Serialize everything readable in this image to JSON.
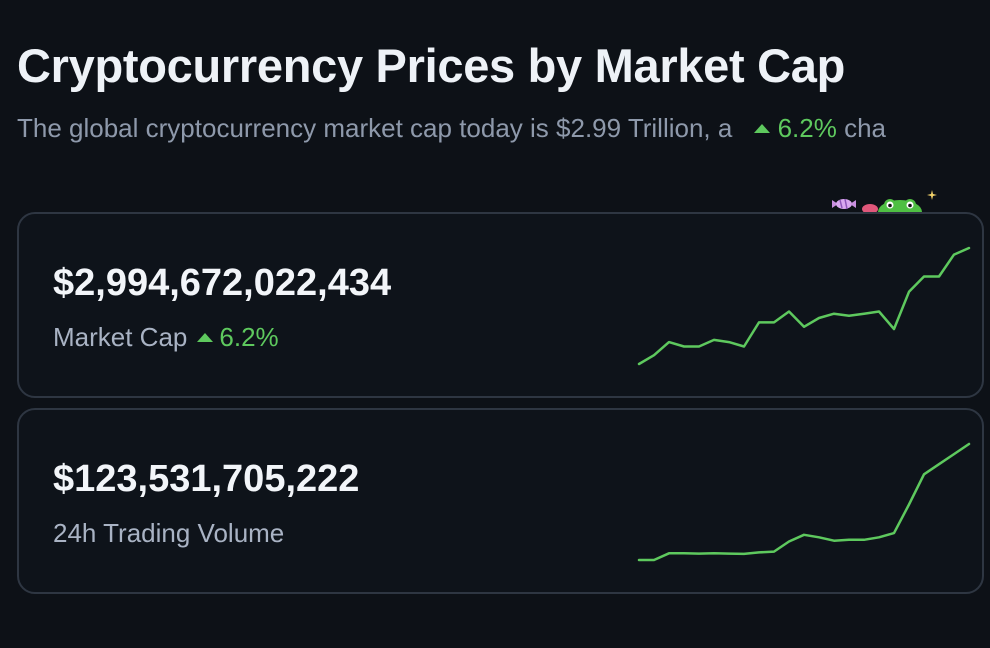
{
  "header": {
    "title": "Cryptocurrency Prices by Market Cap",
    "subtitle_prefix": "The global cryptocurrency market cap today is $2.99 Trillion, a",
    "subtitle_change": "6.2%",
    "subtitle_suffix": "cha",
    "change_direction": "up"
  },
  "cards": {
    "market_cap": {
      "value": "$2,994,672,022,434",
      "label": "Market Cap",
      "change": "6.2%",
      "change_direction": "up",
      "trend": [
        2.58,
        2.62,
        2.68,
        2.66,
        2.66,
        2.69,
        2.68,
        2.66,
        2.77,
        2.77,
        2.82,
        2.75,
        2.79,
        2.81,
        2.8,
        2.81,
        2.82,
        2.74,
        2.91,
        2.98,
        2.98,
        3.08,
        3.11
      ]
    },
    "volume": {
      "value": "$123,531,705,222",
      "label": "24h Trading Volume",
      "trend": [
        60.0,
        60.0,
        64.0,
        64.0,
        63.8,
        64.0,
        63.8,
        63.6,
        64.5,
        65.0,
        71.0,
        75.0,
        73.5,
        71.5,
        72.0,
        72.0,
        73.5,
        76.0,
        93.0,
        111.0,
        117.0,
        123.0,
        129.0
      ]
    }
  },
  "colors": {
    "background": "#0d1117",
    "card_border": "#2e3642",
    "positive": "#5ec95e",
    "muted_text": "#8e99ab"
  },
  "decor": {
    "mascot_icon": "frog-mascot-with-candy"
  }
}
